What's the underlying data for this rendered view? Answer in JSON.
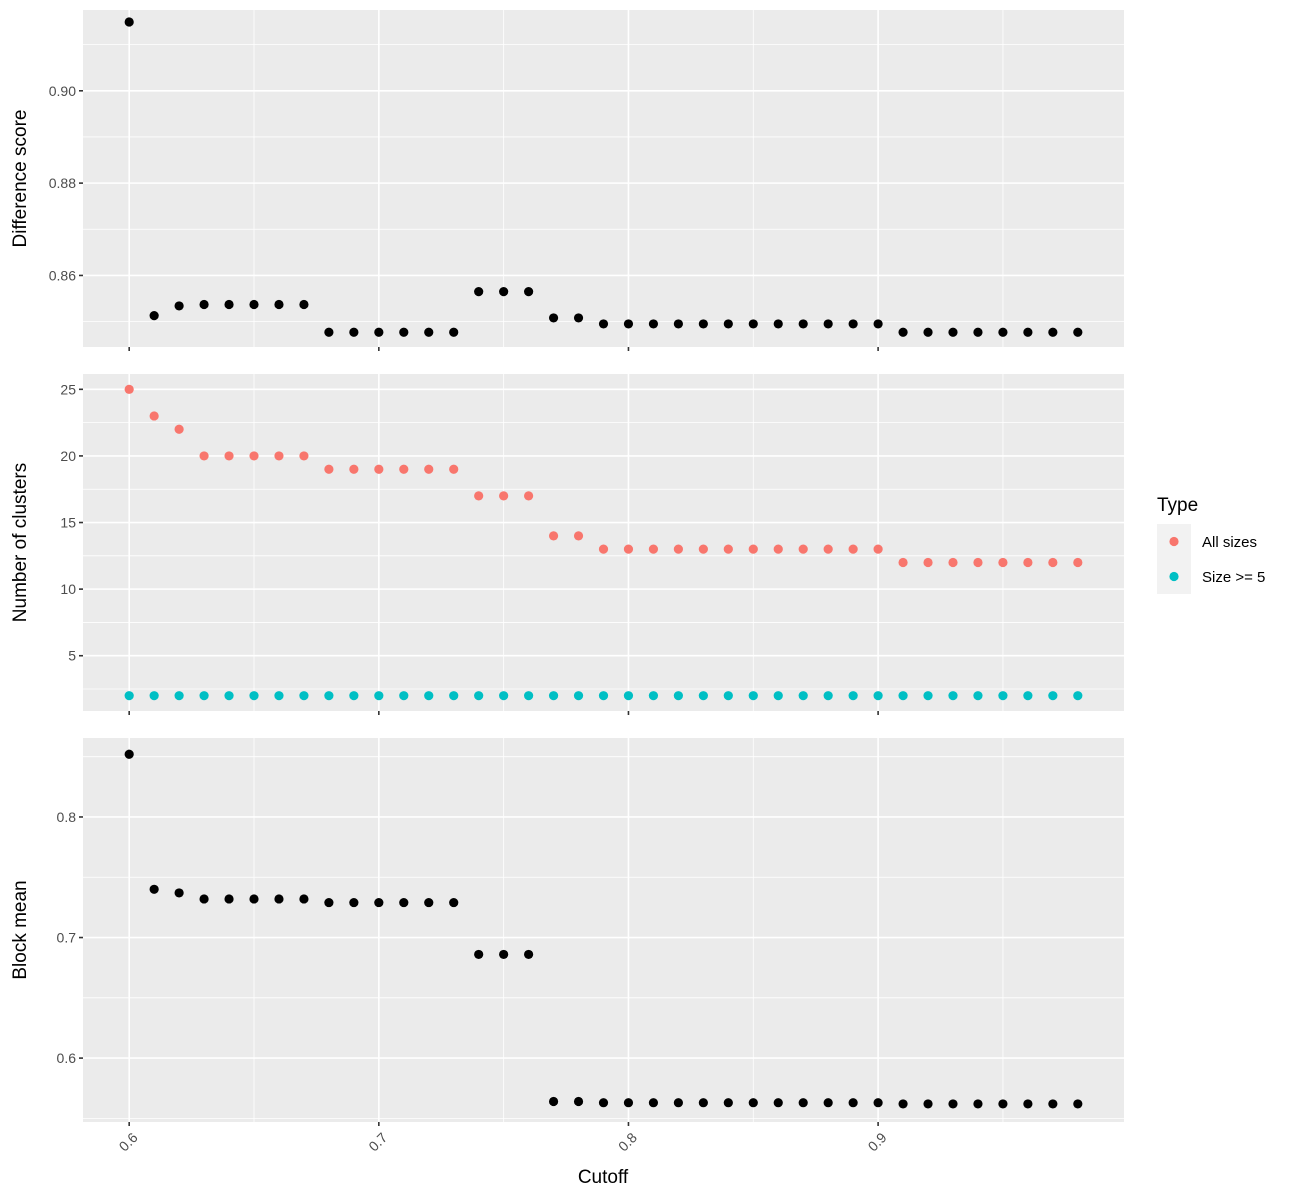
{
  "chart_data": {
    "type": "scatter",
    "xlabel": "Cutoff",
    "x": [
      0.6,
      0.61,
      0.62,
      0.63,
      0.64,
      0.65,
      0.66,
      0.67,
      0.68,
      0.69,
      0.7,
      0.71,
      0.72,
      0.73,
      0.74,
      0.75,
      0.76,
      0.77,
      0.78,
      0.79,
      0.8,
      0.81,
      0.82,
      0.83,
      0.84,
      0.85,
      0.86,
      0.87,
      0.88,
      0.89,
      0.9,
      0.91,
      0.92,
      0.93,
      0.94,
      0.95,
      0.96,
      0.97,
      0.98
    ],
    "xlim": [
      0.5815,
      0.9985
    ],
    "xticks": [
      0.6,
      0.7,
      0.8,
      0.9
    ],
    "xtick_labels": [
      "0.6",
      "0.7",
      "0.8",
      "0.9"
    ],
    "grid": true,
    "legend": {
      "title": "Type",
      "position": "right",
      "entries": [
        {
          "label": "All sizes",
          "color": "#F8766D"
        },
        {
          "label": "Size >= 5",
          "color": "#00BFC4"
        }
      ]
    },
    "panels": [
      {
        "ylabel": "Difference score",
        "ylim": [
          0.8445,
          0.9175
        ],
        "yticks": [
          0.86,
          0.88,
          0.9
        ],
        "ytick_labels": [
          "0.86",
          "0.88",
          "0.90"
        ],
        "series": [
          {
            "color": "#000000",
            "values": [
              0.9149,
              0.8513,
              0.8534,
              0.8537,
              0.8537,
              0.8537,
              0.8537,
              0.8537,
              0.8477,
              0.8477,
              0.8477,
              0.8477,
              0.8477,
              0.8477,
              0.8565,
              0.8565,
              0.8565,
              0.8508,
              0.8508,
              0.8495,
              0.8495,
              0.8495,
              0.8495,
              0.8495,
              0.8495,
              0.8495,
              0.8495,
              0.8495,
              0.8495,
              0.8495,
              0.8495,
              0.8477,
              0.8477,
              0.8477,
              0.8477,
              0.8477,
              0.8477,
              0.8477,
              0.8477
            ]
          }
        ]
      },
      {
        "ylabel": "Number of clusters",
        "ylim": [
          0.85,
          26.15
        ],
        "yticks": [
          5,
          10,
          15,
          20,
          25
        ],
        "ytick_labels": [
          "5",
          "10",
          "15",
          "20",
          "25"
        ],
        "series": [
          {
            "name": "All sizes",
            "color": "#F8766D",
            "values": [
              25,
              23,
              22,
              20,
              20,
              20,
              20,
              20,
              19,
              19,
              19,
              19,
              19,
              19,
              17,
              17,
              17,
              14,
              14,
              13,
              13,
              13,
              13,
              13,
              13,
              13,
              13,
              13,
              13,
              13,
              13,
              12,
              12,
              12,
              12,
              12,
              12,
              12,
              12
            ]
          },
          {
            "name": "Size >= 5",
            "color": "#00BFC4",
            "values": [
              2,
              2,
              2,
              2,
              2,
              2,
              2,
              2,
              2,
              2,
              2,
              2,
              2,
              2,
              2,
              2,
              2,
              2,
              2,
              2,
              2,
              2,
              2,
              2,
              2,
              2,
              2,
              2,
              2,
              2,
              2,
              2,
              2,
              2,
              2,
              2,
              2,
              2,
              2
            ]
          }
        ]
      },
      {
        "ylabel": "Block mean",
        "ylim": [
          0.547,
          0.8655
        ],
        "yticks": [
          0.6,
          0.7,
          0.8
        ],
        "ytick_labels": [
          "0.6",
          "0.7",
          "0.8"
        ],
        "series": [
          {
            "color": "#000000",
            "values": [
              0.852,
              0.74,
              0.737,
              0.732,
              0.732,
              0.732,
              0.732,
              0.732,
              0.729,
              0.729,
              0.729,
              0.729,
              0.729,
              0.729,
              0.686,
              0.686,
              0.686,
              0.564,
              0.564,
              0.563,
              0.563,
              0.563,
              0.563,
              0.563,
              0.563,
              0.563,
              0.563,
              0.563,
              0.563,
              0.563,
              0.563,
              0.562,
              0.562,
              0.562,
              0.562,
              0.562,
              0.562,
              0.562,
              0.562
            ]
          }
        ]
      }
    ]
  }
}
